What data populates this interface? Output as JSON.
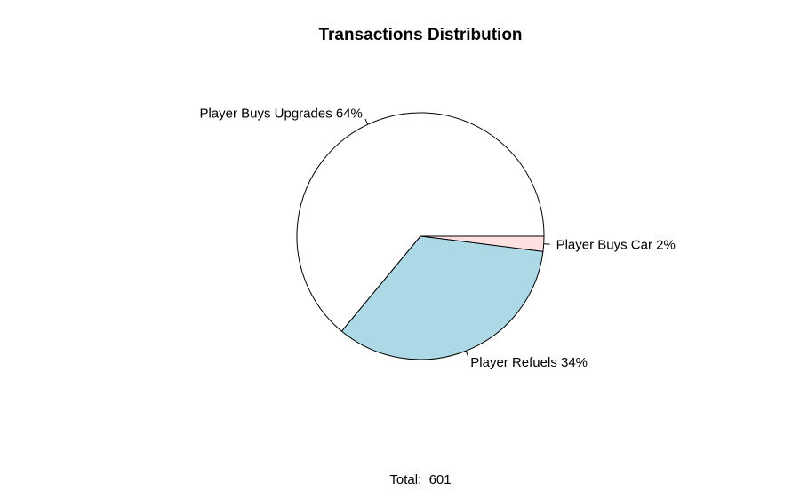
{
  "chart_data": {
    "type": "pie",
    "title": "Transactions Distribution",
    "slices": [
      {
        "label": "Player Buys Car 2%",
        "percent": 2,
        "color": "#ffe0e0"
      },
      {
        "label": "Player Refuels 34%",
        "percent": 34,
        "color": "#add8e6"
      },
      {
        "label": "Player Buys Upgrades 64%",
        "percent": 64,
        "color": "#ffffff"
      }
    ],
    "start": "3 o'clock",
    "direction": "clockwise",
    "footer": "Total:  601"
  }
}
